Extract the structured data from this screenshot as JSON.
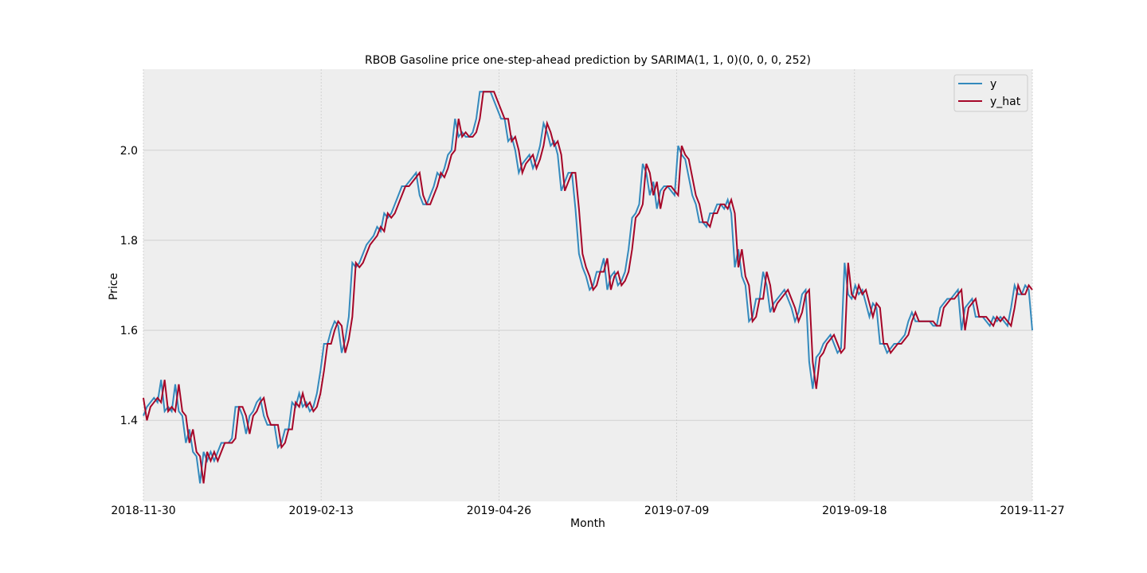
{
  "chart_data": {
    "type": "line",
    "title": "RBOB Gasoline price one-step-ahead prediction by SARIMA(1, 1, 0)(0, 0, 0, 252)",
    "xlabel": "Month",
    "ylabel": "Price",
    "x_tick_labels": [
      "2018-11-30",
      "2019-02-13",
      "2019-04-26",
      "2019-07-09",
      "2019-09-18",
      "2019-11-27"
    ],
    "y_ticks": [
      1.4,
      1.6,
      1.8,
      2.0
    ],
    "y_tick_labels": [
      "1.4",
      "1.6",
      "1.8",
      "2.0"
    ],
    "xlim": [
      0,
      251
    ],
    "ylim": [
      1.22,
      2.18
    ],
    "grid": true,
    "legend_position": "top-right",
    "colors": {
      "y": "#348ABD",
      "y_hat": "#A60628",
      "background": "#EEEEEE",
      "grid": "#CBCBCB"
    },
    "series": [
      {
        "name": "y",
        "values": [
          1.41,
          1.43,
          1.44,
          1.45,
          1.44,
          1.49,
          1.42,
          1.43,
          1.42,
          1.48,
          1.42,
          1.41,
          1.35,
          1.38,
          1.33,
          1.32,
          1.26,
          1.33,
          1.31,
          1.33,
          1.31,
          1.33,
          1.35,
          1.35,
          1.35,
          1.36,
          1.43,
          1.43,
          1.41,
          1.37,
          1.41,
          1.42,
          1.44,
          1.45,
          1.41,
          1.39,
          1.39,
          1.39,
          1.34,
          1.35,
          1.38,
          1.38,
          1.44,
          1.43,
          1.46,
          1.43,
          1.44,
          1.42,
          1.43,
          1.46,
          1.51,
          1.57,
          1.57,
          1.6,
          1.62,
          1.61,
          1.55,
          1.58,
          1.63,
          1.75,
          1.74,
          1.75,
          1.77,
          1.79,
          1.8,
          1.81,
          1.83,
          1.82,
          1.86,
          1.85,
          1.86,
          1.88,
          1.9,
          1.92,
          1.92,
          1.93,
          1.94,
          1.95,
          1.9,
          1.88,
          1.88,
          1.9,
          1.92,
          1.95,
          1.94,
          1.96,
          1.99,
          2.0,
          2.07,
          2.03,
          2.04,
          2.03,
          2.03,
          2.04,
          2.07,
          2.13,
          2.13,
          2.13,
          2.13,
          2.11,
          2.09,
          2.07,
          2.07,
          2.02,
          2.03,
          2.0,
          1.95,
          1.97,
          1.98,
          1.99,
          1.96,
          1.98,
          2.01,
          2.06,
          2.04,
          2.01,
          2.02,
          1.99,
          1.91,
          1.93,
          1.95,
          1.95,
          1.87,
          1.77,
          1.74,
          1.72,
          1.69,
          1.7,
          1.73,
          1.73,
          1.76,
          1.69,
          1.72,
          1.73,
          1.7,
          1.71,
          1.73,
          1.78,
          1.85,
          1.86,
          1.88,
          1.97,
          1.95,
          1.9,
          1.93,
          1.87,
          1.91,
          1.92,
          1.92,
          1.91,
          1.9,
          2.01,
          1.99,
          1.98,
          1.94,
          1.9,
          1.88,
          1.84,
          1.84,
          1.83,
          1.86,
          1.86,
          1.88,
          1.88,
          1.87,
          1.89,
          1.86,
          1.74,
          1.78,
          1.72,
          1.7,
          1.62,
          1.63,
          1.67,
          1.67,
          1.73,
          1.7,
          1.64,
          1.66,
          1.67,
          1.68,
          1.69,
          1.67,
          1.65,
          1.62,
          1.64,
          1.68,
          1.69,
          1.53,
          1.47,
          1.54,
          1.55,
          1.57,
          1.58,
          1.59,
          1.57,
          1.55,
          1.56,
          1.75,
          1.68,
          1.67,
          1.7,
          1.68,
          1.69,
          1.66,
          1.63,
          1.66,
          1.65,
          1.57,
          1.57,
          1.55,
          1.56,
          1.57,
          1.57,
          1.58,
          1.59,
          1.62,
          1.64,
          1.62,
          1.62,
          1.62,
          1.62,
          1.62,
          1.61,
          1.61,
          1.65,
          1.66,
          1.67,
          1.67,
          1.68,
          1.69,
          1.6,
          1.65,
          1.66,
          1.67,
          1.63,
          1.63,
          1.63,
          1.62,
          1.61,
          1.63,
          1.62,
          1.63,
          1.62,
          1.61,
          1.65,
          1.7,
          1.68,
          1.68,
          1.7,
          1.69,
          1.6
        ]
      },
      {
        "name": "y_hat",
        "values": [
          1.45,
          1.4,
          1.43,
          1.44,
          1.45,
          1.44,
          1.49,
          1.42,
          1.43,
          1.42,
          1.48,
          1.42,
          1.41,
          1.35,
          1.38,
          1.33,
          1.32,
          1.26,
          1.33,
          1.31,
          1.33,
          1.31,
          1.33,
          1.35,
          1.35,
          1.35,
          1.36,
          1.43,
          1.43,
          1.41,
          1.37,
          1.41,
          1.42,
          1.44,
          1.45,
          1.41,
          1.39,
          1.39,
          1.39,
          1.34,
          1.35,
          1.38,
          1.38,
          1.44,
          1.43,
          1.46,
          1.43,
          1.44,
          1.42,
          1.43,
          1.46,
          1.51,
          1.57,
          1.57,
          1.6,
          1.62,
          1.61,
          1.55,
          1.58,
          1.63,
          1.75,
          1.74,
          1.75,
          1.77,
          1.79,
          1.8,
          1.81,
          1.83,
          1.82,
          1.86,
          1.85,
          1.86,
          1.88,
          1.9,
          1.92,
          1.92,
          1.93,
          1.94,
          1.95,
          1.9,
          1.88,
          1.88,
          1.9,
          1.92,
          1.95,
          1.94,
          1.96,
          1.99,
          2.0,
          2.07,
          2.03,
          2.04,
          2.03,
          2.03,
          2.04,
          2.07,
          2.13,
          2.13,
          2.13,
          2.13,
          2.11,
          2.09,
          2.07,
          2.07,
          2.02,
          2.03,
          2.0,
          1.95,
          1.97,
          1.98,
          1.99,
          1.96,
          1.98,
          2.01,
          2.06,
          2.04,
          2.01,
          2.02,
          1.99,
          1.91,
          1.93,
          1.95,
          1.95,
          1.87,
          1.77,
          1.74,
          1.72,
          1.69,
          1.7,
          1.73,
          1.73,
          1.76,
          1.69,
          1.72,
          1.73,
          1.7,
          1.71,
          1.73,
          1.78,
          1.85,
          1.86,
          1.88,
          1.97,
          1.95,
          1.9,
          1.93,
          1.87,
          1.91,
          1.92,
          1.92,
          1.91,
          1.9,
          2.01,
          1.99,
          1.98,
          1.94,
          1.9,
          1.88,
          1.84,
          1.84,
          1.83,
          1.86,
          1.86,
          1.88,
          1.88,
          1.87,
          1.89,
          1.86,
          1.74,
          1.78,
          1.72,
          1.7,
          1.62,
          1.63,
          1.67,
          1.67,
          1.73,
          1.7,
          1.64,
          1.66,
          1.67,
          1.68,
          1.69,
          1.67,
          1.65,
          1.62,
          1.64,
          1.68,
          1.69,
          1.53,
          1.47,
          1.54,
          1.55,
          1.57,
          1.58,
          1.59,
          1.57,
          1.55,
          1.56,
          1.75,
          1.68,
          1.67,
          1.7,
          1.68,
          1.69,
          1.66,
          1.63,
          1.66,
          1.65,
          1.57,
          1.57,
          1.55,
          1.56,
          1.57,
          1.57,
          1.58,
          1.59,
          1.62,
          1.64,
          1.62,
          1.62,
          1.62,
          1.62,
          1.62,
          1.61,
          1.61,
          1.65,
          1.66,
          1.67,
          1.67,
          1.68,
          1.69,
          1.6,
          1.65,
          1.66,
          1.67,
          1.63,
          1.63,
          1.63,
          1.62,
          1.61,
          1.63,
          1.62,
          1.63,
          1.62,
          1.61,
          1.65,
          1.7,
          1.68,
          1.68,
          1.7,
          1.69
        ]
      }
    ]
  }
}
